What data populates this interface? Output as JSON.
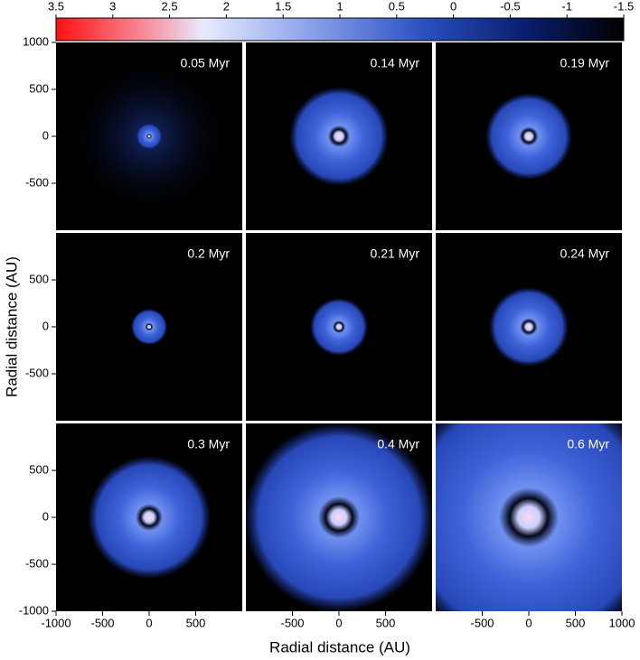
{
  "chart_data": {
    "type": "image-grid",
    "xlabel": "Radial distance (AU)",
    "ylabel": "Radial distance (AU)",
    "xlim": [
      -1000,
      1000
    ],
    "ylim": [
      -1000,
      1000
    ],
    "colorbar": {
      "lim": [
        3.5,
        -1.5
      ],
      "ticks": [
        3.5,
        3,
        2.5,
        2,
        1.5,
        1,
        0.5,
        0,
        -0.5,
        -1,
        -1.5
      ]
    },
    "row_yticks": [
      [
        1000,
        500,
        0,
        -500
      ],
      [
        500,
        0,
        -500
      ],
      [
        500,
        0,
        -500,
        -1000
      ]
    ],
    "col_xticks": [
      [
        -1000,
        -500,
        0,
        500
      ],
      [
        -500,
        0,
        500
      ],
      [
        -500,
        0,
        500,
        1000
      ]
    ],
    "panels": [
      "0.05 Myr",
      "0.14 Myr",
      "0.19 Myr",
      "0.2 Myr",
      "0.21 Myr",
      "0.24 Myr",
      "0.3 Myr",
      "0.4 Myr",
      "0.6 Myr"
    ]
  }
}
